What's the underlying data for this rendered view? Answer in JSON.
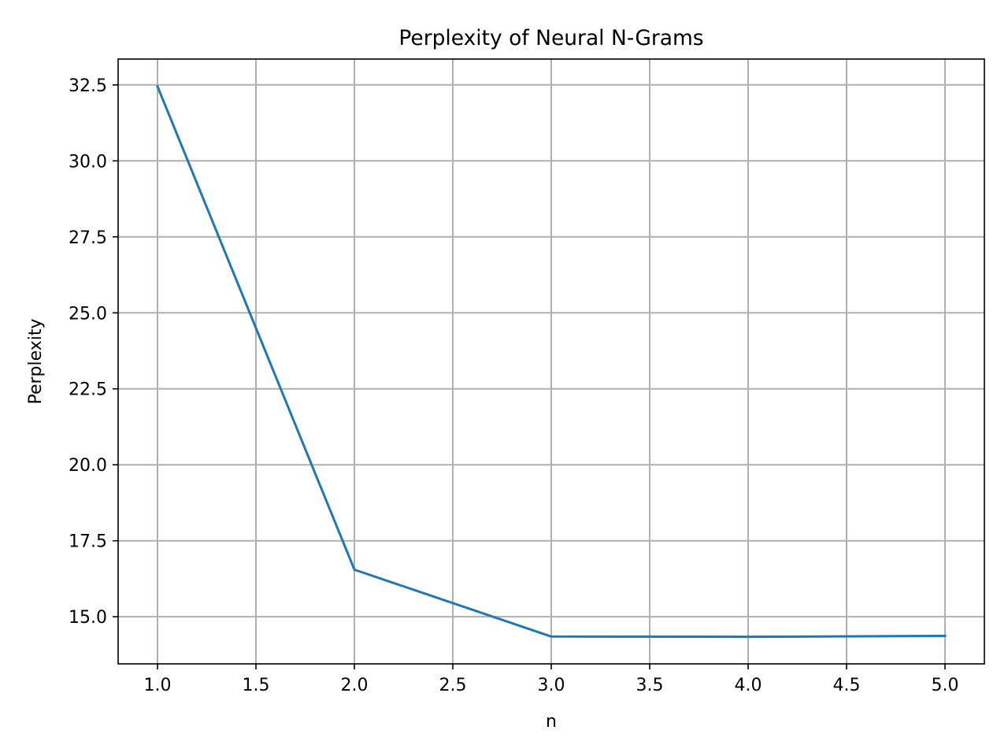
{
  "chart_data": {
    "type": "line",
    "title": "Perplexity of Neural N-Grams",
    "xlabel": "n",
    "ylabel": "Perplexity",
    "x": [
      1,
      2,
      3,
      4,
      5
    ],
    "series": [
      {
        "values": [
          32.45,
          16.55,
          14.35,
          14.34,
          14.37
        ],
        "color": "#1f77b4"
      }
    ],
    "xlim": [
      0.8,
      5.2
    ],
    "ylim": [
      13.45,
      33.35
    ],
    "xticks": [
      1.0,
      1.5,
      2.0,
      2.5,
      3.0,
      3.5,
      4.0,
      4.5,
      5.0
    ],
    "xtick_labels": [
      "1.0",
      "1.5",
      "2.0",
      "2.5",
      "3.0",
      "3.5",
      "4.0",
      "4.5",
      "5.0"
    ],
    "yticks": [
      15.0,
      17.5,
      20.0,
      22.5,
      25.0,
      27.5,
      30.0,
      32.5
    ],
    "ytick_labels": [
      "15.0",
      "17.5",
      "20.0",
      "22.5",
      "25.0",
      "27.5",
      "30.0",
      "32.5"
    ],
    "grid": true,
    "legend": false
  }
}
